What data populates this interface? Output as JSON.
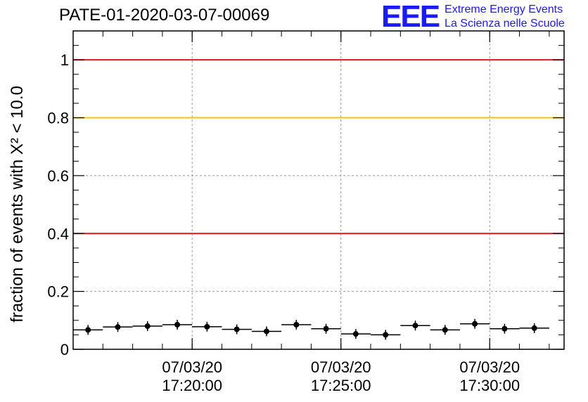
{
  "header": {
    "title": "PATE-01-2020-03-07-00069",
    "logo_mark": "EEE",
    "logo_line1": "Extreme Energy Events",
    "logo_line2": "La Scienza nelle Scuole"
  },
  "chart_data": {
    "type": "scatter",
    "ylabel": "fraction of events with Χ² < 10.0",
    "ylim": [
      0,
      1.1
    ],
    "yticks": [
      "0",
      "0.2",
      "0.4",
      "0.6",
      "0.8",
      "1"
    ],
    "xticks": [
      {
        "date": "07/03/20",
        "time": "17:20:00"
      },
      {
        "date": "07/03/20",
        "time": "17:25:00"
      },
      {
        "date": "07/03/20",
        "time": "17:30:00"
      }
    ],
    "xlim": [
      "17:16:00",
      "17:32:30"
    ],
    "grid": true,
    "reference_lines": [
      {
        "y": 1.0,
        "color": "#e8141c"
      },
      {
        "y": 0.8,
        "color": "#f5c400"
      },
      {
        "y": 0.4,
        "color": "#e8141c"
      }
    ],
    "series": [
      {
        "x": [
          "17:16:30",
          "17:17:30",
          "17:18:30",
          "17:19:30",
          "17:20:30",
          "17:21:30",
          "17:22:30",
          "17:23:30",
          "17:24:30",
          "17:25:30",
          "17:26:30",
          "17:27:30",
          "17:28:30",
          "17:29:30",
          "17:30:30",
          "17:31:30"
        ],
        "y": [
          0.067,
          0.077,
          0.08,
          0.085,
          0.078,
          0.069,
          0.062,
          0.085,
          0.071,
          0.053,
          0.05,
          0.082,
          0.067,
          0.088,
          0.071,
          0.073
        ]
      }
    ]
  }
}
